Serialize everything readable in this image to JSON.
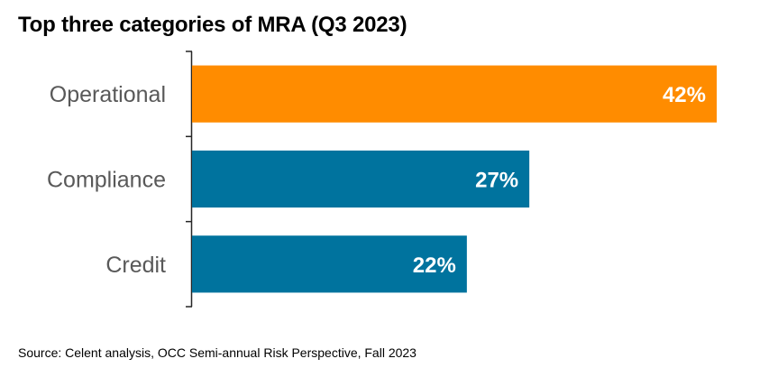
{
  "chart_data": {
    "type": "bar",
    "orientation": "horizontal",
    "title": "Top three categories of MRA (Q3 2023)",
    "categories": [
      "Operational",
      "Compliance",
      "Credit"
    ],
    "values": [
      42,
      27,
      22
    ],
    "value_labels": [
      "42%",
      "27%",
      "22%"
    ],
    "unit": "%",
    "colors": [
      "#FF8C00",
      "#00739E",
      "#00739E"
    ],
    "xlabel": "",
    "ylabel": "",
    "xlim": [
      0,
      42
    ],
    "grid": false,
    "legend": "none"
  },
  "source": "Source: Celent analysis, OCC Semi-annual Risk Perspective, Fall 2023"
}
